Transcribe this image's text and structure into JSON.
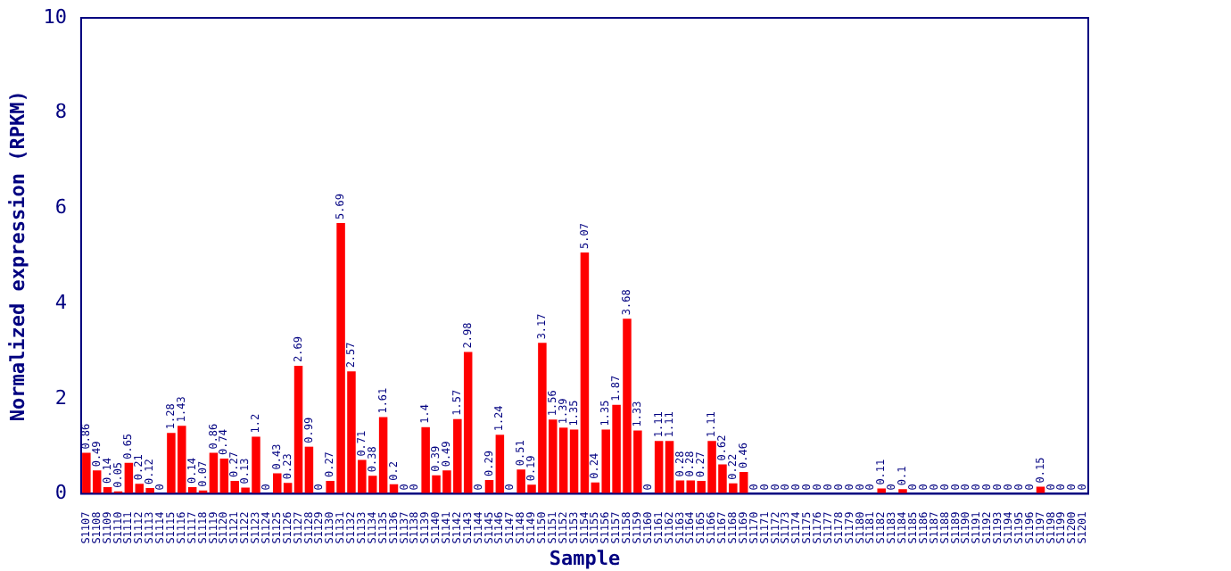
{
  "chart_data": {
    "type": "bar",
    "xlabel": "Sample",
    "ylabel": "Normalized expression (RPKM)",
    "categories": [
      "S1107",
      "S1108",
      "S1109",
      "S1110",
      "S1111",
      "S1112",
      "S1113",
      "S1114",
      "S1115",
      "S1116",
      "S1117",
      "S1118",
      "S1119",
      "S1120",
      "S1121",
      "S1122",
      "S1123",
      "S1124",
      "S1125",
      "S1126",
      "S1127",
      "S1128",
      "S1129",
      "S1130",
      "S1131",
      "S1132",
      "S1133",
      "S1134",
      "S1135",
      "S1136",
      "S1137",
      "S1138",
      "S1139",
      "S1140",
      "S1141",
      "S1142",
      "S1143",
      "S1144",
      "S1145",
      "S1146",
      "S1147",
      "S1148",
      "S1149",
      "S1150",
      "S1151",
      "S1152",
      "S1153",
      "S1154",
      "S1155",
      "S1156",
      "S1157",
      "S1158",
      "S1159",
      "S1160",
      "S1161",
      "S1162",
      "S1163",
      "S1164",
      "S1165",
      "S1166",
      "S1167",
      "S1168",
      "S1169",
      "S1170",
      "S1171",
      "S1172",
      "S1173",
      "S1174",
      "S1175",
      "S1176",
      "S1177",
      "S1178",
      "S1179",
      "S1180",
      "S1181",
      "S1182",
      "S1183",
      "S1184",
      "S1185",
      "S1186",
      "S1187",
      "S1188",
      "S1189",
      "S1190",
      "S1191",
      "S1192",
      "S1193",
      "S1194",
      "S1195",
      "S1196",
      "S1197",
      "S1198",
      "S1199",
      "S1200",
      "S1201"
    ],
    "values": [
      0.86,
      0.49,
      0.14,
      0.05,
      0.65,
      0.21,
      0.12,
      0,
      1.28,
      1.43,
      0.14,
      0.07,
      0.86,
      0.74,
      0.27,
      0.13,
      1.2,
      0,
      0.43,
      0.23,
      2.69,
      0.99,
      0,
      0.27,
      5.69,
      2.57,
      0.71,
      0.38,
      1.61,
      0.2,
      0,
      0,
      1.4,
      0.39,
      0.49,
      1.57,
      2.98,
      0,
      0.29,
      1.24,
      0,
      0.51,
      0.19,
      3.17,
      1.56,
      1.39,
      1.35,
      5.07,
      0.24,
      1.35,
      1.87,
      3.68,
      1.33,
      0,
      1.11,
      1.11,
      0.28,
      0.28,
      0.27,
      1.11,
      0.62,
      0.22,
      0.46,
      0,
      0,
      0,
      0,
      0,
      0,
      0,
      0,
      0,
      0,
      0,
      0,
      0.11,
      0,
      0.1,
      0,
      0,
      0,
      0,
      0,
      0,
      0,
      0,
      0,
      0,
      0,
      0,
      0.15,
      0,
      0,
      0,
      0
    ],
    "color": "#ff0000",
    "ylim": [
      0,
      10
    ],
    "yticks": [
      0,
      2,
      4,
      6,
      8,
      10
    ],
    "data_labels": true
  }
}
